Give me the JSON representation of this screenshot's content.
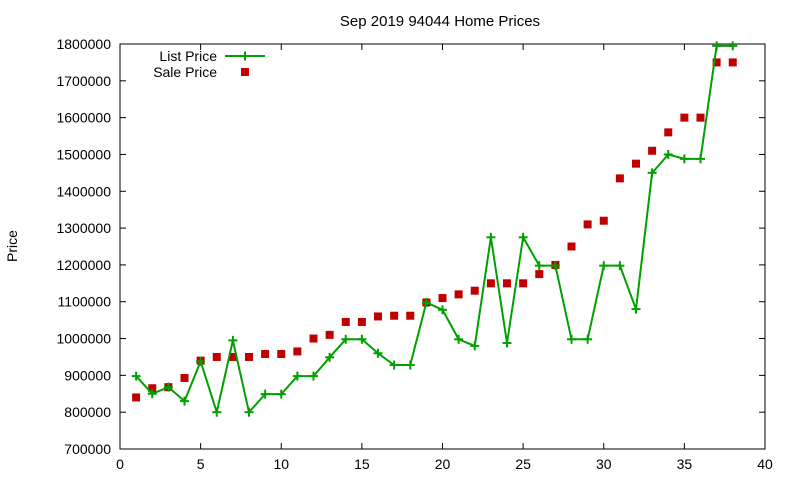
{
  "chart_data": {
    "type": "line",
    "title": "Sep 2019 94044 Home Prices",
    "xlabel": "",
    "ylabel": "Price",
    "xlim": [
      0,
      40
    ],
    "ylim": [
      700000,
      1800000
    ],
    "x_ticks": [
      0,
      5,
      10,
      15,
      20,
      25,
      30,
      35,
      40
    ],
    "y_ticks": [
      700000,
      800000,
      900000,
      1000000,
      1100000,
      1200000,
      1300000,
      1400000,
      1500000,
      1600000,
      1700000,
      1800000
    ],
    "x_tick_labels": [
      "0",
      "5",
      "10",
      "15",
      "20",
      "25",
      "30",
      "35",
      "40"
    ],
    "y_tick_labels": [
      "700000",
      "800000",
      "900000",
      "1000000",
      "1100000",
      "1200000",
      "1300000",
      "1400000",
      "1500000",
      "1600000",
      "1700000",
      "1800000"
    ],
    "grid": false,
    "legend_position": "top-left",
    "x": [
      1,
      2,
      3,
      4,
      5,
      6,
      7,
      8,
      9,
      10,
      11,
      12,
      13,
      14,
      15,
      16,
      17,
      18,
      19,
      20,
      21,
      22,
      23,
      24,
      25,
      26,
      27,
      28,
      29,
      30,
      31,
      32,
      33,
      34,
      35,
      36,
      37,
      38
    ],
    "series": [
      {
        "name": "List Price",
        "style": "line-plus",
        "color": "#00a000",
        "values": [
          898000,
          850000,
          868000,
          830000,
          938000,
          800000,
          995000,
          800000,
          849000,
          849000,
          898000,
          898000,
          949000,
          998000,
          998000,
          960000,
          928000,
          928000,
          1098000,
          1078000,
          998000,
          980000,
          1275000,
          988000,
          1275000,
          1198000,
          1198000,
          998000,
          998000,
          1198000,
          1198000,
          1080000,
          1450000,
          1500000,
          1488000,
          1488000,
          1795000,
          1795000
        ]
      },
      {
        "name": "Sale Price",
        "style": "points-square",
        "color": "#c00000",
        "values": [
          840000,
          865000,
          868000,
          893000,
          940000,
          950000,
          950000,
          950000,
          958000,
          958000,
          965000,
          1000000,
          1010000,
          1045000,
          1045000,
          1060000,
          1062000,
          1062000,
          1098000,
          1110000,
          1120000,
          1130000,
          1150000,
          1150000,
          1150000,
          1175000,
          1200000,
          1250000,
          1310000,
          1320000,
          1435000,
          1475000,
          1510000,
          1560000,
          1600000,
          1600000,
          1750000,
          1750000
        ]
      }
    ]
  }
}
